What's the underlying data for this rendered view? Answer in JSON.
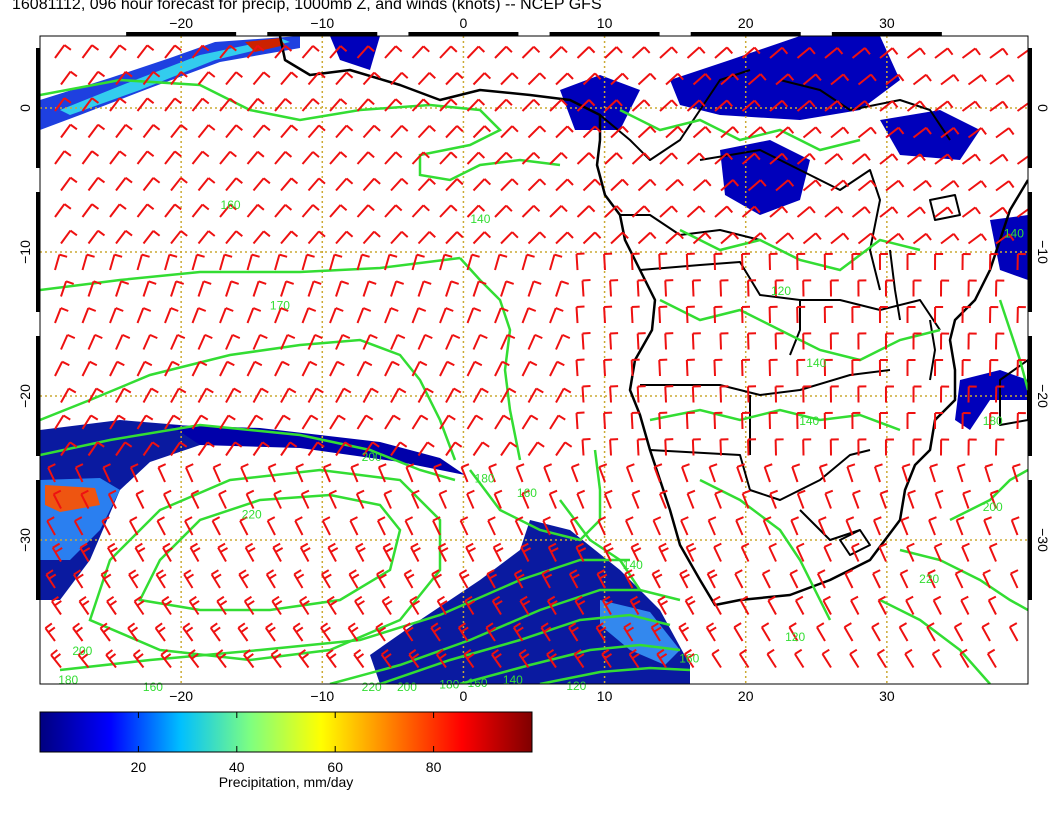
{
  "title": "16081112, 096 hour forecast for precip, 1000mb Z, and winds (knots) -- NCEP GFS",
  "map": {
    "lon_range": [
      -30,
      40
    ],
    "lat_range": [
      -40,
      5
    ],
    "grid_lons": [
      -20,
      -10,
      0,
      10,
      20,
      30
    ],
    "grid_lats": [
      0,
      -10,
      -20,
      -30
    ],
    "lon_tick_labels": [
      "−20",
      "−10",
      "0",
      "10",
      "20",
      "30"
    ],
    "lat_tick_labels": [
      "0",
      "−10",
      "−20",
      "−30"
    ],
    "colors": {
      "contour": "#33dd33",
      "wind_barb": "#ee1111",
      "coast": "#000000",
      "gridline": "#ccaa33",
      "precip_low": "#00008b",
      "precip_mid": "#1e90ff"
    },
    "contour_labels": [
      {
        "text": "160",
        "lon": -16.5,
        "lat": -7
      },
      {
        "text": "170",
        "lon": -13,
        "lat": -14
      },
      {
        "text": "140",
        "lon": 1.2,
        "lat": -8
      },
      {
        "text": "200",
        "lon": -6.5,
        "lat": -24.5
      },
      {
        "text": "220",
        "lon": -15,
        "lat": -28.5
      },
      {
        "text": "180",
        "lon": 1.5,
        "lat": -26
      },
      {
        "text": "160",
        "lon": 4.5,
        "lat": -27
      },
      {
        "text": "140",
        "lon": 12,
        "lat": -32
      },
      {
        "text": "200",
        "lon": -27,
        "lat": -38
      },
      {
        "text": "180",
        "lon": -28,
        "lat": -40
      },
      {
        "text": "160",
        "lon": -22,
        "lat": -40.5
      },
      {
        "text": "220",
        "lon": -6.5,
        "lat": -40.5
      },
      {
        "text": "200",
        "lon": -4,
        "lat": -40.5
      },
      {
        "text": "180",
        "lon": -1,
        "lat": -40.3
      },
      {
        "text": "160",
        "lon": 1,
        "lat": -40.2
      },
      {
        "text": "140",
        "lon": 3.5,
        "lat": -40
      },
      {
        "text": "120",
        "lon": 8,
        "lat": -40.4
      },
      {
        "text": "120",
        "lon": 22.5,
        "lat": -13
      },
      {
        "text": "140",
        "lon": 25,
        "lat": -18
      },
      {
        "text": "140",
        "lon": 24.5,
        "lat": -22
      },
      {
        "text": "180",
        "lon": 37.5,
        "lat": -22
      },
      {
        "text": "200",
        "lon": 37.5,
        "lat": -28
      },
      {
        "text": "220",
        "lon": 33,
        "lat": -33
      },
      {
        "text": "120",
        "lon": 23.5,
        "lat": -37
      },
      {
        "text": "160",
        "lon": 16,
        "lat": -38.5
      },
      {
        "text": "140",
        "lon": 39,
        "lat": -9
      }
    ]
  },
  "colorbar": {
    "min": 0,
    "max": 100,
    "ticks": [
      20,
      40,
      60,
      80
    ],
    "tick_labels": [
      "20",
      "40",
      "60",
      "80"
    ],
    "label": "Precipitation, mm/day",
    "stops": [
      "#00007f",
      "#0000ff",
      "#00bfff",
      "#7fff7f",
      "#ffff00",
      "#ff7f00",
      "#ff0000",
      "#7f0000"
    ]
  }
}
